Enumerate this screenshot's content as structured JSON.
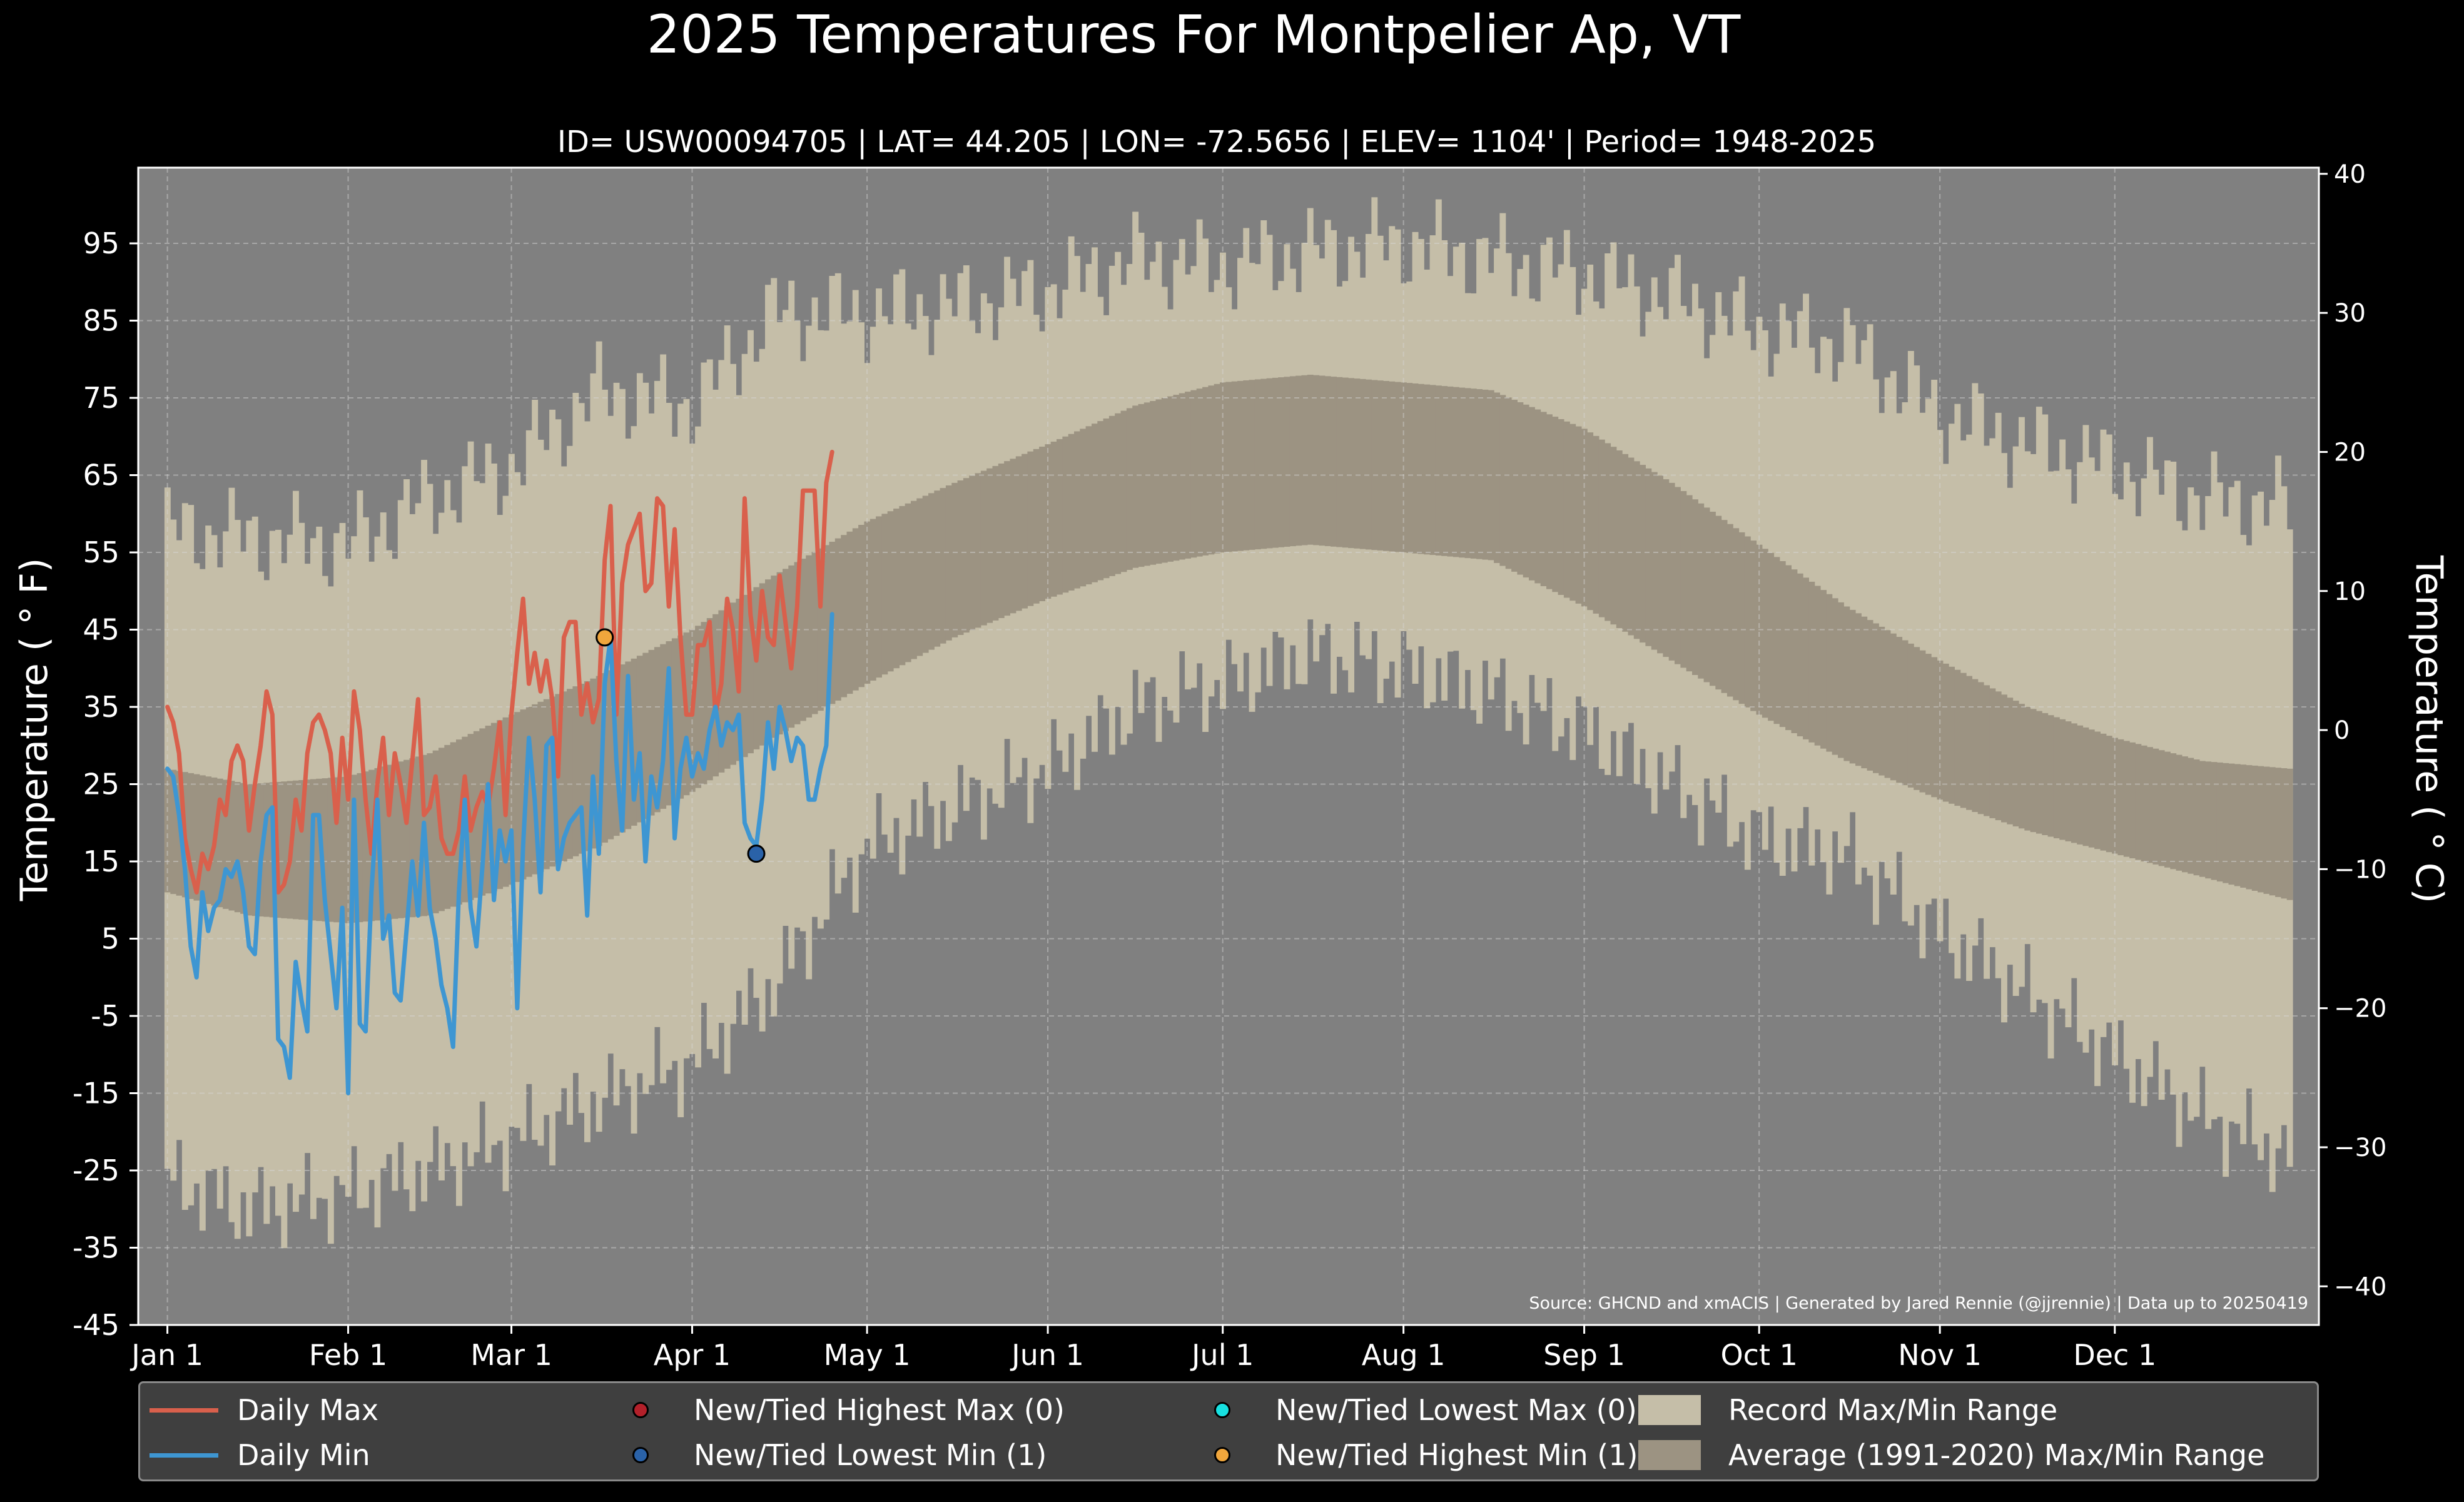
{
  "title": "2025 Temperatures For Montpelier Ap, VT",
  "subtitle": "ID= USW00094705 | LAT= 44.205 | LON= -72.5656 | ELEV= 1104' | Period= 1948-2025",
  "source": "Source: GHCND and xmACIS | Generated by Jared Rennie (@jjrennie) | Data up to 20250419",
  "colors": {
    "background": "#000000",
    "plot_bg": "#808080",
    "record_range": "#c5bea8",
    "average_range": "#9c9382",
    "daily_max": "#d9604c",
    "daily_min": "#3e96d2",
    "highest_max": "#b3202a",
    "lowest_min": "#2a62a8",
    "lowest_max": "#17e0e0",
    "highest_min": "#f0a63c",
    "legend_bg": "#3f3f3f"
  },
  "legend": [
    {
      "label": "Daily Max",
      "kind": "line",
      "color": "#d9604c"
    },
    {
      "label": "New/Tied Highest Max (0)",
      "kind": "dot",
      "color": "#b3202a"
    },
    {
      "label": "New/Tied Lowest Max (0)",
      "kind": "dot",
      "color": "#17e0e0"
    },
    {
      "label": "Record Max/Min Range",
      "kind": "rect",
      "color": "#c5bea8"
    },
    {
      "label": "Daily Min",
      "kind": "line",
      "color": "#3e96d2"
    },
    {
      "label": "New/Tied Lowest Min (1)",
      "kind": "dot",
      "color": "#2a62a8"
    },
    {
      "label": "New/Tied Highest Min (1)",
      "kind": "dot",
      "color": "#f0a63c"
    },
    {
      "label": "Average (1991-2020) Max/Min Range",
      "kind": "rect",
      "color": "#9c9382"
    }
  ],
  "chart_data": {
    "type": "line",
    "title": "2025 Temperatures For Montpelier Ap, VT",
    "xlabel": "",
    "ylabel": "Temperature ( $^\\circ$F)",
    "ylabel_display": "Temperature ( ° F)",
    "ylabel_right": "Temperature ( ° C)",
    "x_tick_labels": [
      "Jan 1",
      "Feb 1",
      "Mar 1",
      "Apr 1",
      "May 1",
      "Jun 1",
      "Jul 1",
      "Aug 1",
      "Sep 1",
      "Oct 1",
      "Nov 1",
      "Dec 1"
    ],
    "x_tick_days": [
      1,
      32,
      60,
      91,
      121,
      152,
      182,
      213,
      244,
      274,
      305,
      335
    ],
    "xlim": [
      -4,
      370
    ],
    "ylim": [
      -45,
      104.8
    ],
    "y_ticks": [
      -45,
      -35,
      -25,
      -15,
      -5,
      5,
      15,
      25,
      35,
      45,
      55,
      65,
      75,
      85,
      95
    ],
    "y_ticks_right_c": [
      -40,
      -30,
      -20,
      -10,
      0,
      10,
      20,
      30,
      40
    ],
    "grid": true,
    "legend_position": "bottom",
    "average_range": {
      "x": [
        1,
        15,
        32,
        46,
        60,
        75,
        91,
        105,
        121,
        136,
        152,
        167,
        182,
        197,
        213,
        228,
        244,
        259,
        274,
        289,
        305,
        320,
        335,
        350,
        365
      ],
      "max": [
        27,
        25,
        26,
        29,
        34,
        39,
        45,
        52,
        59,
        64,
        69,
        74,
        77,
        78,
        77,
        76,
        71,
        64,
        56,
        48,
        41,
        35,
        31,
        28,
        27
      ],
      "min": [
        11,
        8,
        7,
        8,
        12,
        17,
        24,
        31,
        38,
        44,
        49,
        53,
        55,
        56,
        55,
        54,
        48,
        41,
        34,
        28,
        23,
        19,
        16,
        13,
        10
      ]
    },
    "record_range": {
      "x": [
        1,
        15,
        32,
        46,
        60,
        75,
        91,
        105,
        121,
        136,
        152,
        167,
        182,
        197,
        213,
        228,
        244,
        259,
        274,
        289,
        305,
        320,
        335,
        350,
        365
      ],
      "max": [
        58,
        57,
        56,
        62,
        66,
        76,
        74,
        86,
        86,
        87,
        89,
        93,
        92,
        94,
        95,
        93,
        91,
        88,
        84,
        82,
        73,
        69,
        66,
        62,
        61
      ],
      "min": [
        -26,
        -30,
        -28,
        -25,
        -21,
        -16,
        -11,
        -1,
        17,
        22,
        27,
        35,
        38,
        42,
        40,
        37,
        32,
        25,
        18,
        16,
        6,
        -2,
        -10,
        -18,
        -23
      ]
    },
    "series": [
      {
        "name": "Daily Max",
        "x_start": 1,
        "values": [
          35,
          33,
          29,
          18,
          14,
          11,
          16,
          14,
          17,
          23,
          21,
          28,
          30,
          28,
          19,
          25,
          30,
          37,
          34,
          11,
          12,
          15,
          23,
          19,
          29,
          33,
          34,
          32,
          29,
          20,
          31,
          23,
          37,
          32,
          23,
          16,
          25,
          31,
          21,
          29,
          25,
          20,
          28,
          36,
          21,
          22,
          26,
          18,
          16,
          16,
          19,
          26,
          19,
          22,
          24,
          22,
          27,
          33,
          21,
          34,
          42,
          49,
          38,
          42,
          37,
          41,
          36,
          26,
          44,
          46,
          46,
          34,
          38,
          33,
          36,
          54,
          61,
          34,
          51,
          56,
          58,
          60,
          50,
          51,
          62,
          61,
          48,
          58,
          44,
          34,
          34,
          43,
          43,
          46,
          34,
          38,
          49,
          45,
          37,
          62,
          47,
          41,
          50,
          44,
          43,
          52,
          46,
          40,
          48,
          63,
          63,
          63,
          48,
          64,
          68
        ]
      },
      {
        "name": "Daily Min",
        "x_start": 1,
        "values": [
          27,
          26,
          21,
          14,
          4,
          0,
          11,
          6,
          9,
          10,
          14,
          13,
          15,
          11,
          4,
          3,
          15,
          21,
          22,
          -8,
          -9,
          -13,
          2,
          -3,
          -7,
          21,
          21,
          10,
          3,
          -4,
          9,
          -15,
          23,
          -6,
          -7,
          11,
          23,
          5,
          8,
          -2,
          -3,
          6,
          15,
          8,
          20,
          9,
          5,
          -1,
          -4,
          -9,
          11,
          23,
          9,
          4,
          14,
          25,
          10,
          19,
          15,
          19,
          -4,
          17,
          31,
          23,
          11,
          30,
          31,
          14,
          18,
          20,
          21,
          22,
          8,
          26,
          16,
          38,
          44,
          28,
          19,
          39,
          23,
          29,
          15,
          26,
          22,
          28,
          40,
          18,
          27,
          31,
          26,
          29,
          27,
          32,
          35,
          30,
          33,
          32,
          34,
          20,
          18,
          17,
          23,
          33,
          27,
          35,
          32,
          28,
          31,
          30,
          23,
          23,
          27,
          30,
          47
        ]
      }
    ],
    "points": [
      {
        "name": "New/Tied Highest Min",
        "day": 76,
        "value": 44,
        "color": "#f0a63c"
      },
      {
        "name": "New/Tied Lowest Min",
        "day": 102,
        "value": 16,
        "color": "#2a62a8"
      }
    ]
  }
}
